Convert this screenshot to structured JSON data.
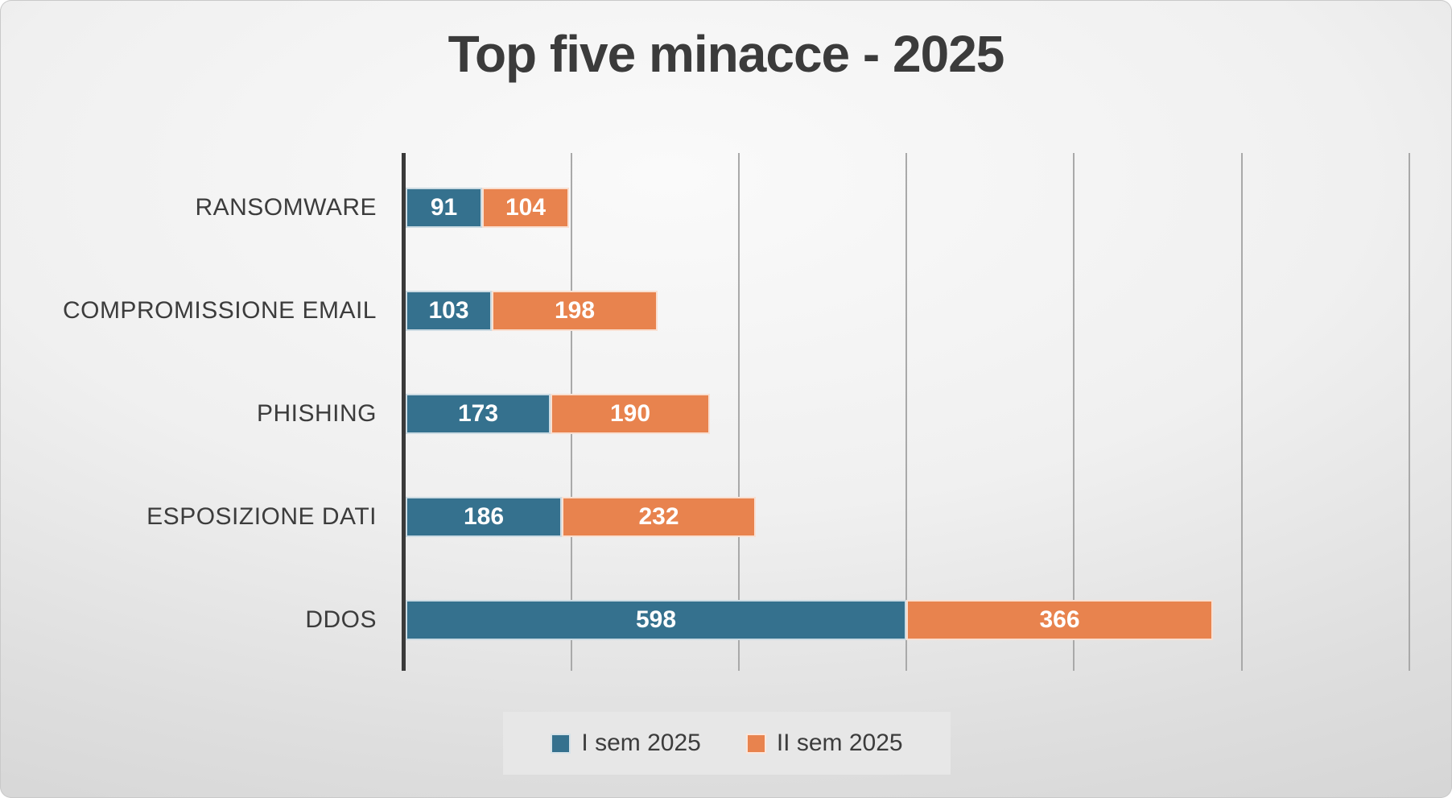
{
  "chart_data": {
    "type": "bar",
    "orientation": "horizontal-stacked",
    "title": "Top five minacce - 2025",
    "categories": [
      "RANSOMWARE",
      "COMPROMISSIONE EMAIL",
      "PHISHING",
      "ESPOSIZIONE DATI",
      "DDOS"
    ],
    "series": [
      {
        "name": "I sem 2025",
        "color": "#35718E",
        "values": [
          91,
          103,
          173,
          186,
          598
        ]
      },
      {
        "name": "II sem 2025",
        "color": "#E8834E",
        "values": [
          104,
          198,
          190,
          232,
          366
        ]
      }
    ],
    "xlim": [
      0,
      1200
    ],
    "gridline_interval": 200,
    "grid": true,
    "legend_position": "bottom",
    "data_labels": true
  },
  "colors": {
    "title_text": "#3b3b3b",
    "label_text": "#3c3c3c",
    "axis_line": "#3a3a3a",
    "gridline": "#a9a9a9",
    "legend_panel_bg": "#e7e7e7",
    "bar_value_text": "#ffffff"
  }
}
